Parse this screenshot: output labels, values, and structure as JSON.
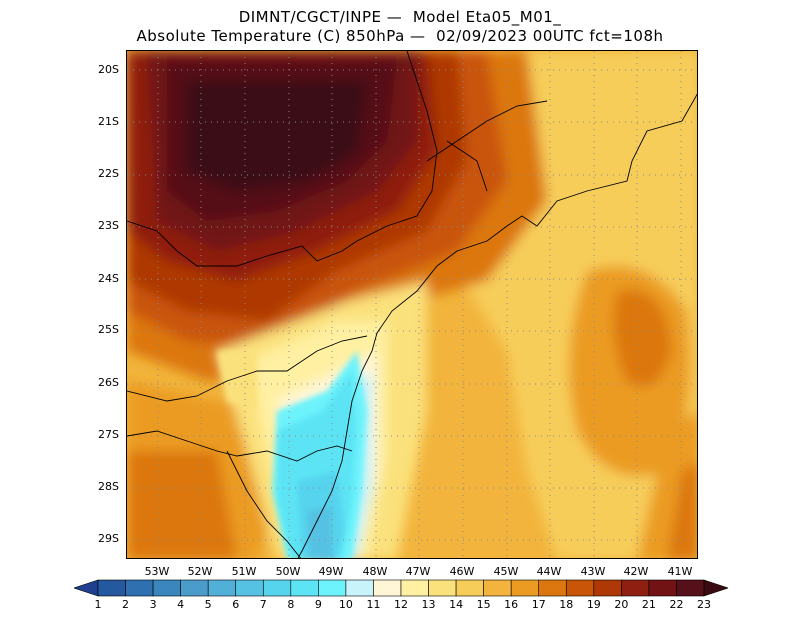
{
  "header": {
    "line1": "DIMNT/CGCT/INPE —  Model Eta05_M01_",
    "line2": "Absolute Temperature (C) 850hPa —  02/09/2023 00UTC fct=108h"
  },
  "map": {
    "lat_labels": [
      "20S",
      "21S",
      "22S",
      "23S",
      "24S",
      "25S",
      "26S",
      "27S",
      "28S",
      "29S"
    ],
    "lon_labels": [
      "53W",
      "52W",
      "51W",
      "50W",
      "49W",
      "48W",
      "47W",
      "46W",
      "45W",
      "44W",
      "43W",
      "42W",
      "41W"
    ],
    "grid": "dotted"
  },
  "colorbar": {
    "labels": [
      "1",
      "2",
      "3",
      "4",
      "5",
      "6",
      "7",
      "8",
      "9",
      "10",
      "11",
      "12",
      "13",
      "14",
      "15",
      "16",
      "17",
      "18",
      "19",
      "20",
      "21",
      "22",
      "23"
    ],
    "colors": [
      "#1f3f8f",
      "#24599f",
      "#2f70b0",
      "#3b86bd",
      "#4a9ccb",
      "#52b0d8",
      "#55c2e3",
      "#56d4ee",
      "#5ce4f5",
      "#6df3fb",
      "#c9f3fb",
      "#fff6d8",
      "#fff0a2",
      "#fbe17b",
      "#f7cd5a",
      "#f2b43c",
      "#eb9b22",
      "#dc7710",
      "#c95509",
      "#ae3806",
      "#8f1f10",
      "#711314",
      "#551019",
      "#3a0a12"
    ]
  }
}
